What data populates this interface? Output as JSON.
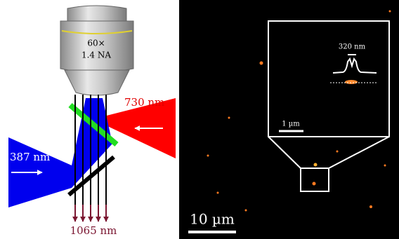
{
  "figure": {
    "objective": {
      "magnification": "60×",
      "aperture": "1.4 NA"
    },
    "beams": {
      "red": "730 nm",
      "blue": "387 nm",
      "output": "1065 nm"
    },
    "image": {
      "scale_bar": "10 µm",
      "inset": {
        "peak_width": "320 nm",
        "scale_bar": "1 µm"
      }
    }
  }
}
